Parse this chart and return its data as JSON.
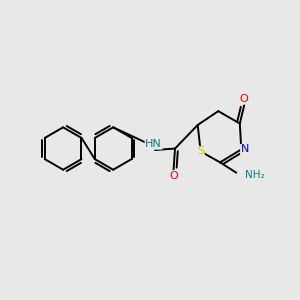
{
  "background_color": "#e8e8e8",
  "bond_color": "#000000",
  "atom_colors": {
    "N": "#0000ff",
    "O": "#ff0000",
    "S": "#cccc00",
    "NH": "#008080",
    "C": "#000000"
  },
  "lw": 1.4,
  "ring_r": 0.72,
  "font_size": 8.0
}
